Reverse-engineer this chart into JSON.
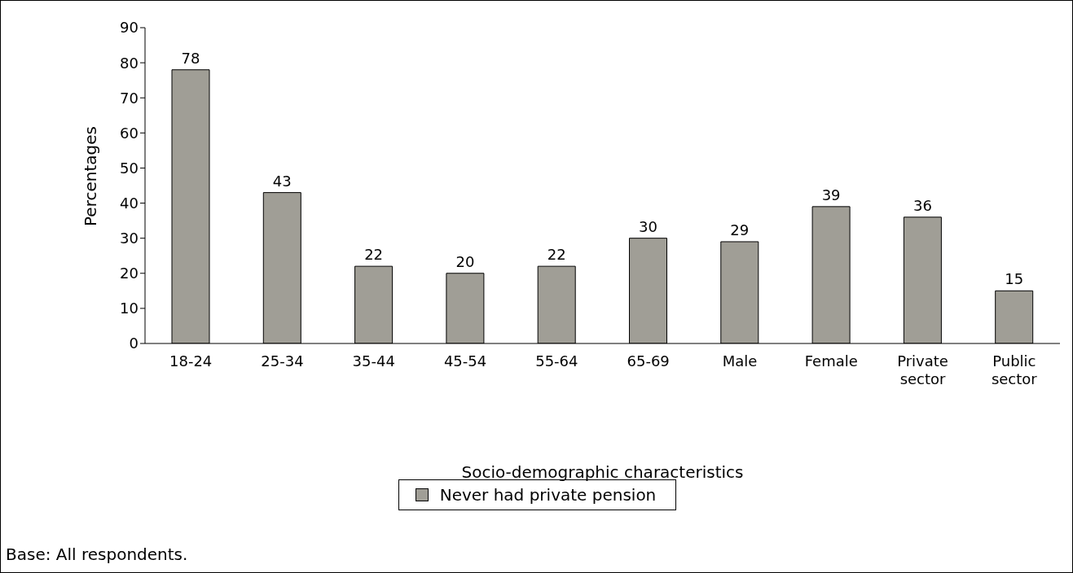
{
  "chart_data": {
    "type": "bar",
    "xlabel": "Socio-demographic characteristics",
    "ylabel": "Percentages",
    "categories": [
      "18-24",
      "25-34",
      "35-44",
      "45-54",
      "55-64",
      "65-69",
      "Male",
      "Female",
      "Private sector",
      "Public sector"
    ],
    "series": [
      {
        "name": "Never had private pension",
        "color": "#a09e96",
        "values": [
          78,
          43,
          22,
          20,
          22,
          30,
          29,
          39,
          36,
          15
        ]
      }
    ],
    "ylim": [
      0,
      90
    ],
    "yticks": [
      0,
      10,
      20,
      30,
      40,
      50,
      60,
      70,
      80,
      90
    ],
    "data_labels": true,
    "legend": "bottom",
    "annotations": [
      "Base: All respondents."
    ]
  }
}
